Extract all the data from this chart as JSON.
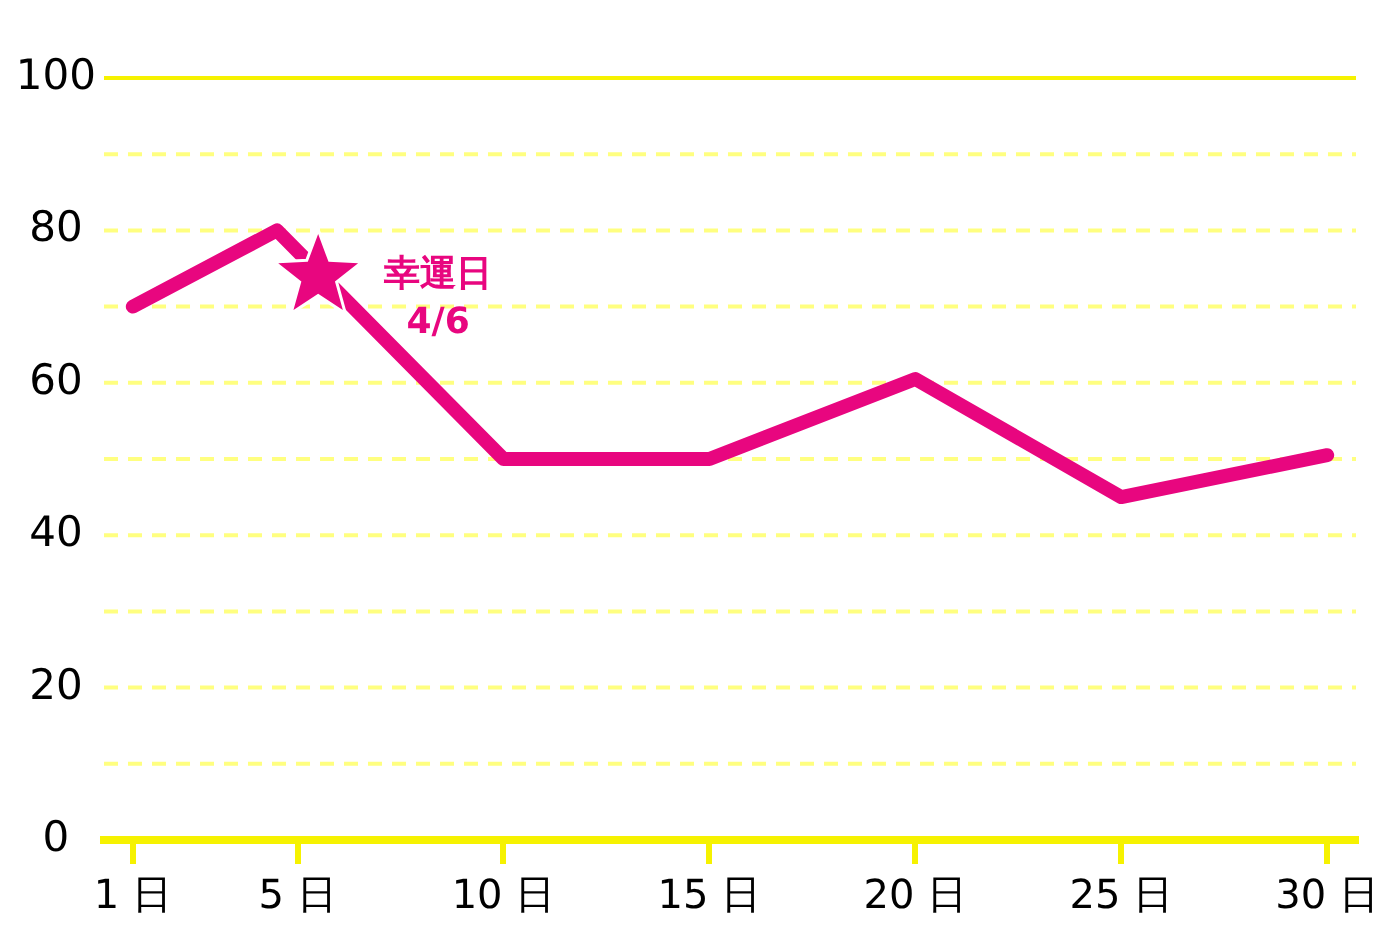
{
  "chart_data": {
    "type": "line",
    "xlim": [
      0.3,
      30.7
    ],
    "xticks": [
      {
        "value": 1,
        "label": "1 日"
      },
      {
        "value": 5,
        "label": "5 日"
      },
      {
        "value": 10,
        "label": "10 日"
      },
      {
        "value": 15,
        "label": "15 日"
      },
      {
        "value": 20,
        "label": "20 日"
      },
      {
        "value": 25,
        "label": "25 日"
      },
      {
        "value": 30,
        "label": "30 日"
      }
    ],
    "ylim": [
      0,
      100
    ],
    "yticks": [
      0,
      {
        "value": 10,
        "label": null
      },
      20,
      {
        "value": 30,
        "label": null
      },
      40,
      {
        "value": 50,
        "label": null
      },
      60,
      {
        "value": 70,
        "label": null
      },
      80,
      {
        "value": 90,
        "label": null
      },
      100
    ],
    "grid": "y",
    "series": [
      {
        "color": "#e8067f",
        "x": [
          1,
          4.5,
          10,
          15,
          20,
          25,
          30
        ],
        "values": [
          70,
          80,
          50,
          50,
          60.5,
          45,
          50.5
        ]
      },
      {
        "type": "scatter",
        "marker": "star",
        "color": "#e8067f",
        "x": [
          5.5
        ],
        "values": [
          74
        ]
      }
    ],
    "annotations": [
      {
        "text": "幸運日\n4/6",
        "x": 5.5,
        "y": 74
      }
    ]
  }
}
